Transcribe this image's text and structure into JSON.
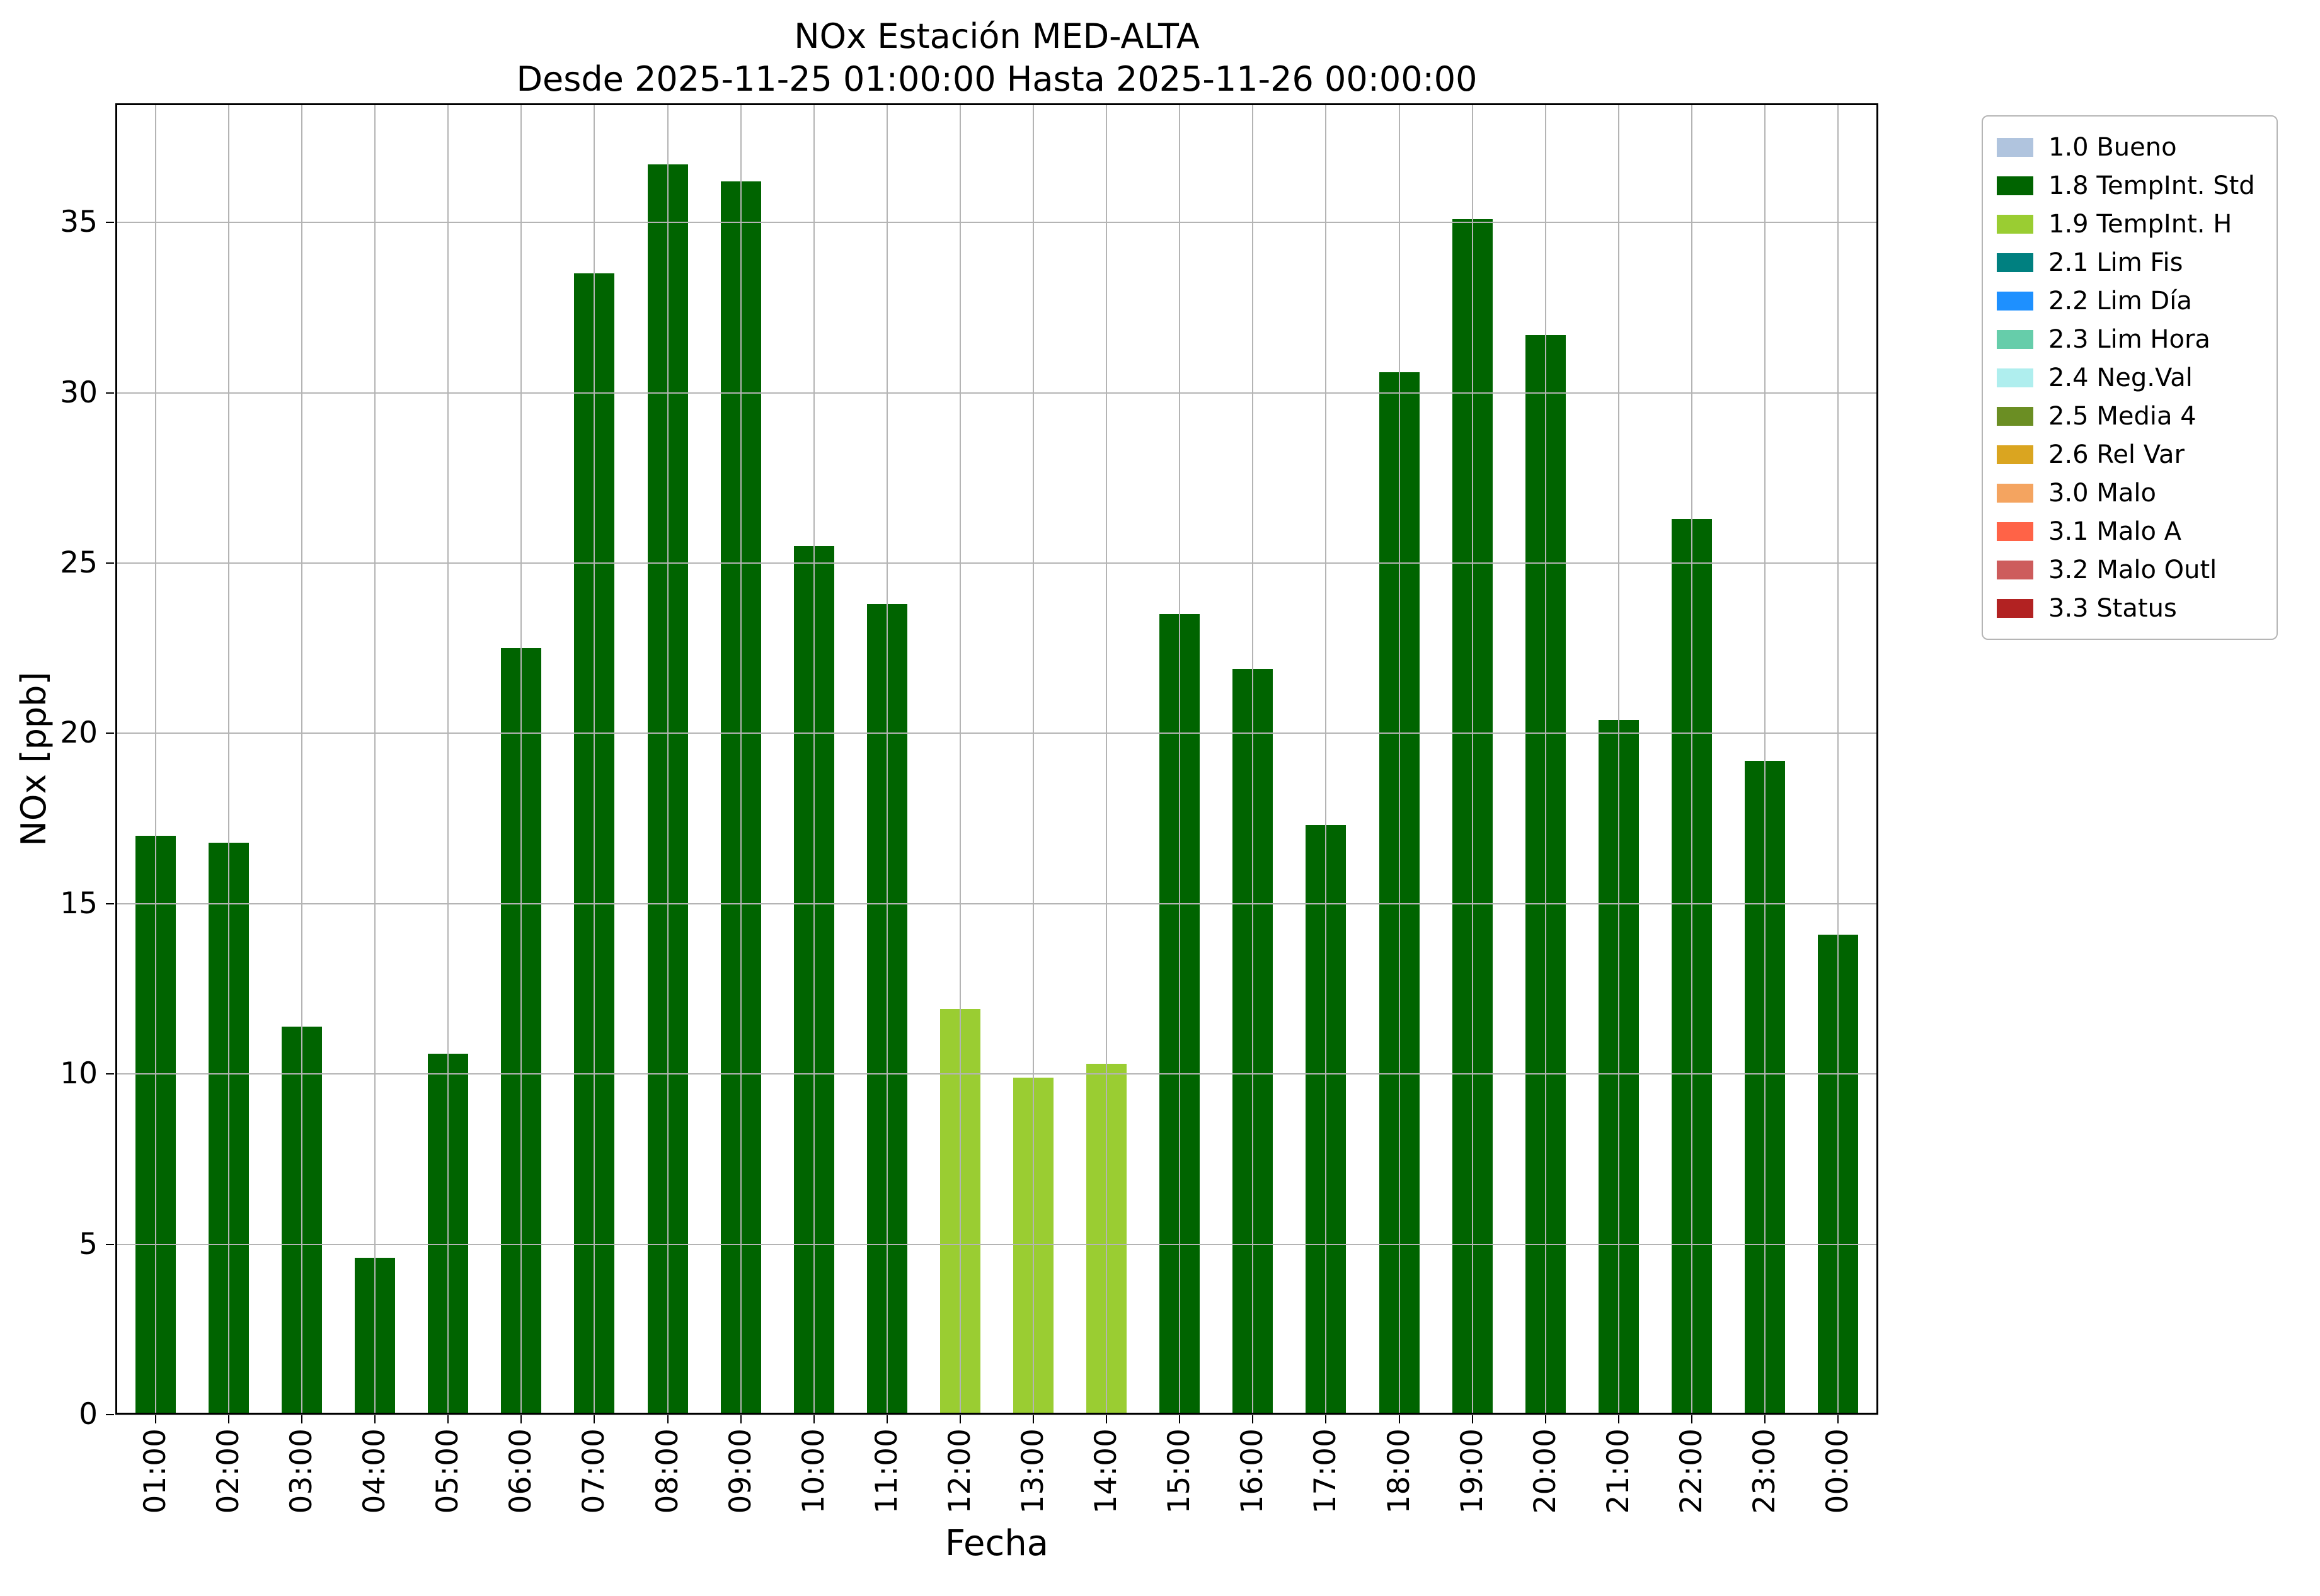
{
  "chart_data": {
    "type": "bar",
    "title": "NOx Estación MED-ALTA",
    "subtitle": "Desde 2025-11-25 01:00:00 Hasta 2025-11-26 00:00:00",
    "xlabel": "Fecha",
    "ylabel": "NOx [ppb]",
    "ylim": [
      0,
      38.5
    ],
    "yticks": [
      0,
      5,
      10,
      15,
      20,
      25,
      30,
      35
    ],
    "grid": true,
    "legend_position": "outside-upper-right",
    "categories": [
      "01:00",
      "02:00",
      "03:00",
      "04:00",
      "05:00",
      "06:00",
      "07:00",
      "08:00",
      "09:00",
      "10:00",
      "11:00",
      "12:00",
      "13:00",
      "14:00",
      "15:00",
      "16:00",
      "17:00",
      "18:00",
      "19:00",
      "20:00",
      "21:00",
      "22:00",
      "23:00",
      "00:00"
    ],
    "values": [
      17.0,
      16.8,
      11.4,
      4.6,
      10.6,
      22.5,
      33.5,
      36.7,
      36.2,
      25.5,
      23.8,
      11.9,
      9.9,
      10.3,
      23.5,
      21.9,
      17.3,
      30.6,
      35.1,
      31.7,
      20.4,
      26.3,
      19.2,
      14.1
    ],
    "statuses": [
      "1.8",
      "1.8",
      "1.8",
      "1.8",
      "1.8",
      "1.8",
      "1.8",
      "1.8",
      "1.8",
      "1.8",
      "1.8",
      "1.9",
      "1.9",
      "1.9",
      "1.8",
      "1.8",
      "1.8",
      "1.8",
      "1.8",
      "1.8",
      "1.8",
      "1.8",
      "1.8",
      "1.8"
    ],
    "status_colors": {
      "1.0": "#B0C4DE",
      "1.8": "#006400",
      "1.9": "#9ACD32",
      "2.1": "#008080",
      "2.2": "#1E90FF",
      "2.3": "#66CDAA",
      "2.4": "#AFEEEE",
      "2.5": "#6B8E23",
      "2.6": "#DAA520",
      "3.0": "#F4A460",
      "3.1": "#FF6347",
      "3.2": "#CD5C5C",
      "3.3": "#B22222"
    },
    "legend": [
      {
        "code": "1.0",
        "label": "1.0 Bueno"
      },
      {
        "code": "1.8",
        "label": "1.8 TempInt. Std"
      },
      {
        "code": "1.9",
        "label": "1.9 TempInt. H"
      },
      {
        "code": "2.1",
        "label": "2.1 Lim Fis"
      },
      {
        "code": "2.2",
        "label": "2.2 Lim Día"
      },
      {
        "code": "2.3",
        "label": "2.3 Lim Hora"
      },
      {
        "code": "2.4",
        "label": "2.4 Neg.Val"
      },
      {
        "code": "2.5",
        "label": "2.5 Media 4"
      },
      {
        "code": "2.6",
        "label": "2.6 Rel Var"
      },
      {
        "code": "3.0",
        "label": "3.0 Malo"
      },
      {
        "code": "3.1",
        "label": "3.1 Malo A"
      },
      {
        "code": "3.2",
        "label": "3.2 Malo Outl"
      },
      {
        "code": "3.3",
        "label": "3.3 Status"
      }
    ]
  }
}
